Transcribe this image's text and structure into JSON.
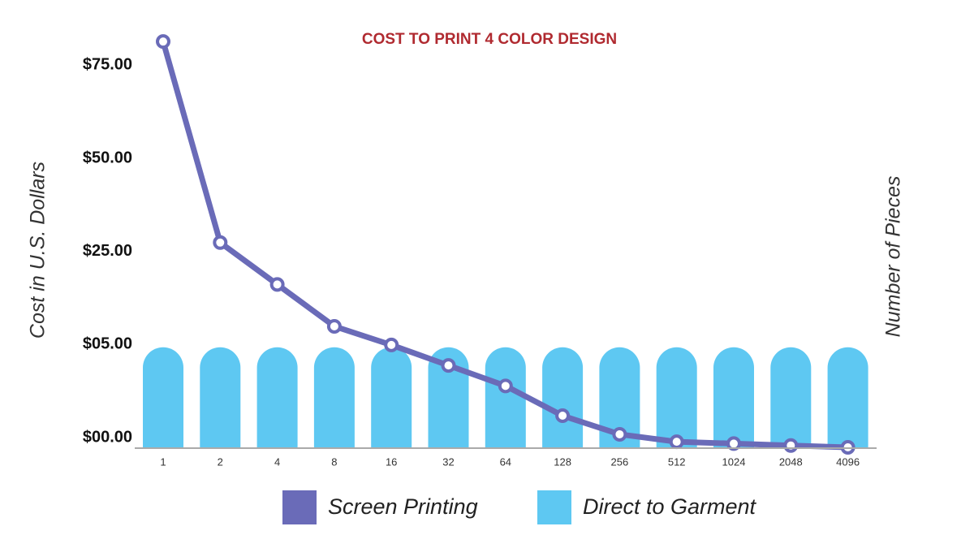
{
  "chart_data": {
    "type": "line",
    "title": "COST TO PRINT 4 COLOR DESIGN",
    "y_label": "Cost in U.S. Dollars",
    "x_label": "Number of Pieces",
    "categories": [
      "1",
      "2",
      "4",
      "8",
      "16",
      "32",
      "64",
      "128",
      "256",
      "512",
      "1024",
      "2048",
      "4096"
    ],
    "series": [
      {
        "name": "Screen Printing",
        "type": "line",
        "color": "#6a6bb8",
        "values": [
          84,
          30,
          20,
          11,
          7,
          4.4,
          3.3,
          1.7,
          0.7,
          0.3,
          0.2,
          0.1,
          0
        ]
      },
      {
        "name": "Direct to Garment",
        "type": "bar",
        "color": "#5ec8f2",
        "values": [
          6.5,
          6.5,
          6.5,
          6.5,
          6.5,
          6.5,
          6.5,
          6.5,
          6.5,
          6.5,
          6.5,
          6.5,
          6.5
        ]
      }
    ],
    "ylim": [
      0,
      86
    ],
    "yticks": [
      {
        "value": 0,
        "label": "$00.00"
      },
      {
        "value": 5,
        "label": "$05.00"
      },
      {
        "value": 25,
        "label": "$25.00"
      },
      {
        "value": 50,
        "label": "$50.00"
      },
      {
        "value": 75,
        "label": "$75.00"
      }
    ],
    "y_scale": "tick-spaced",
    "legend": "bottom"
  }
}
